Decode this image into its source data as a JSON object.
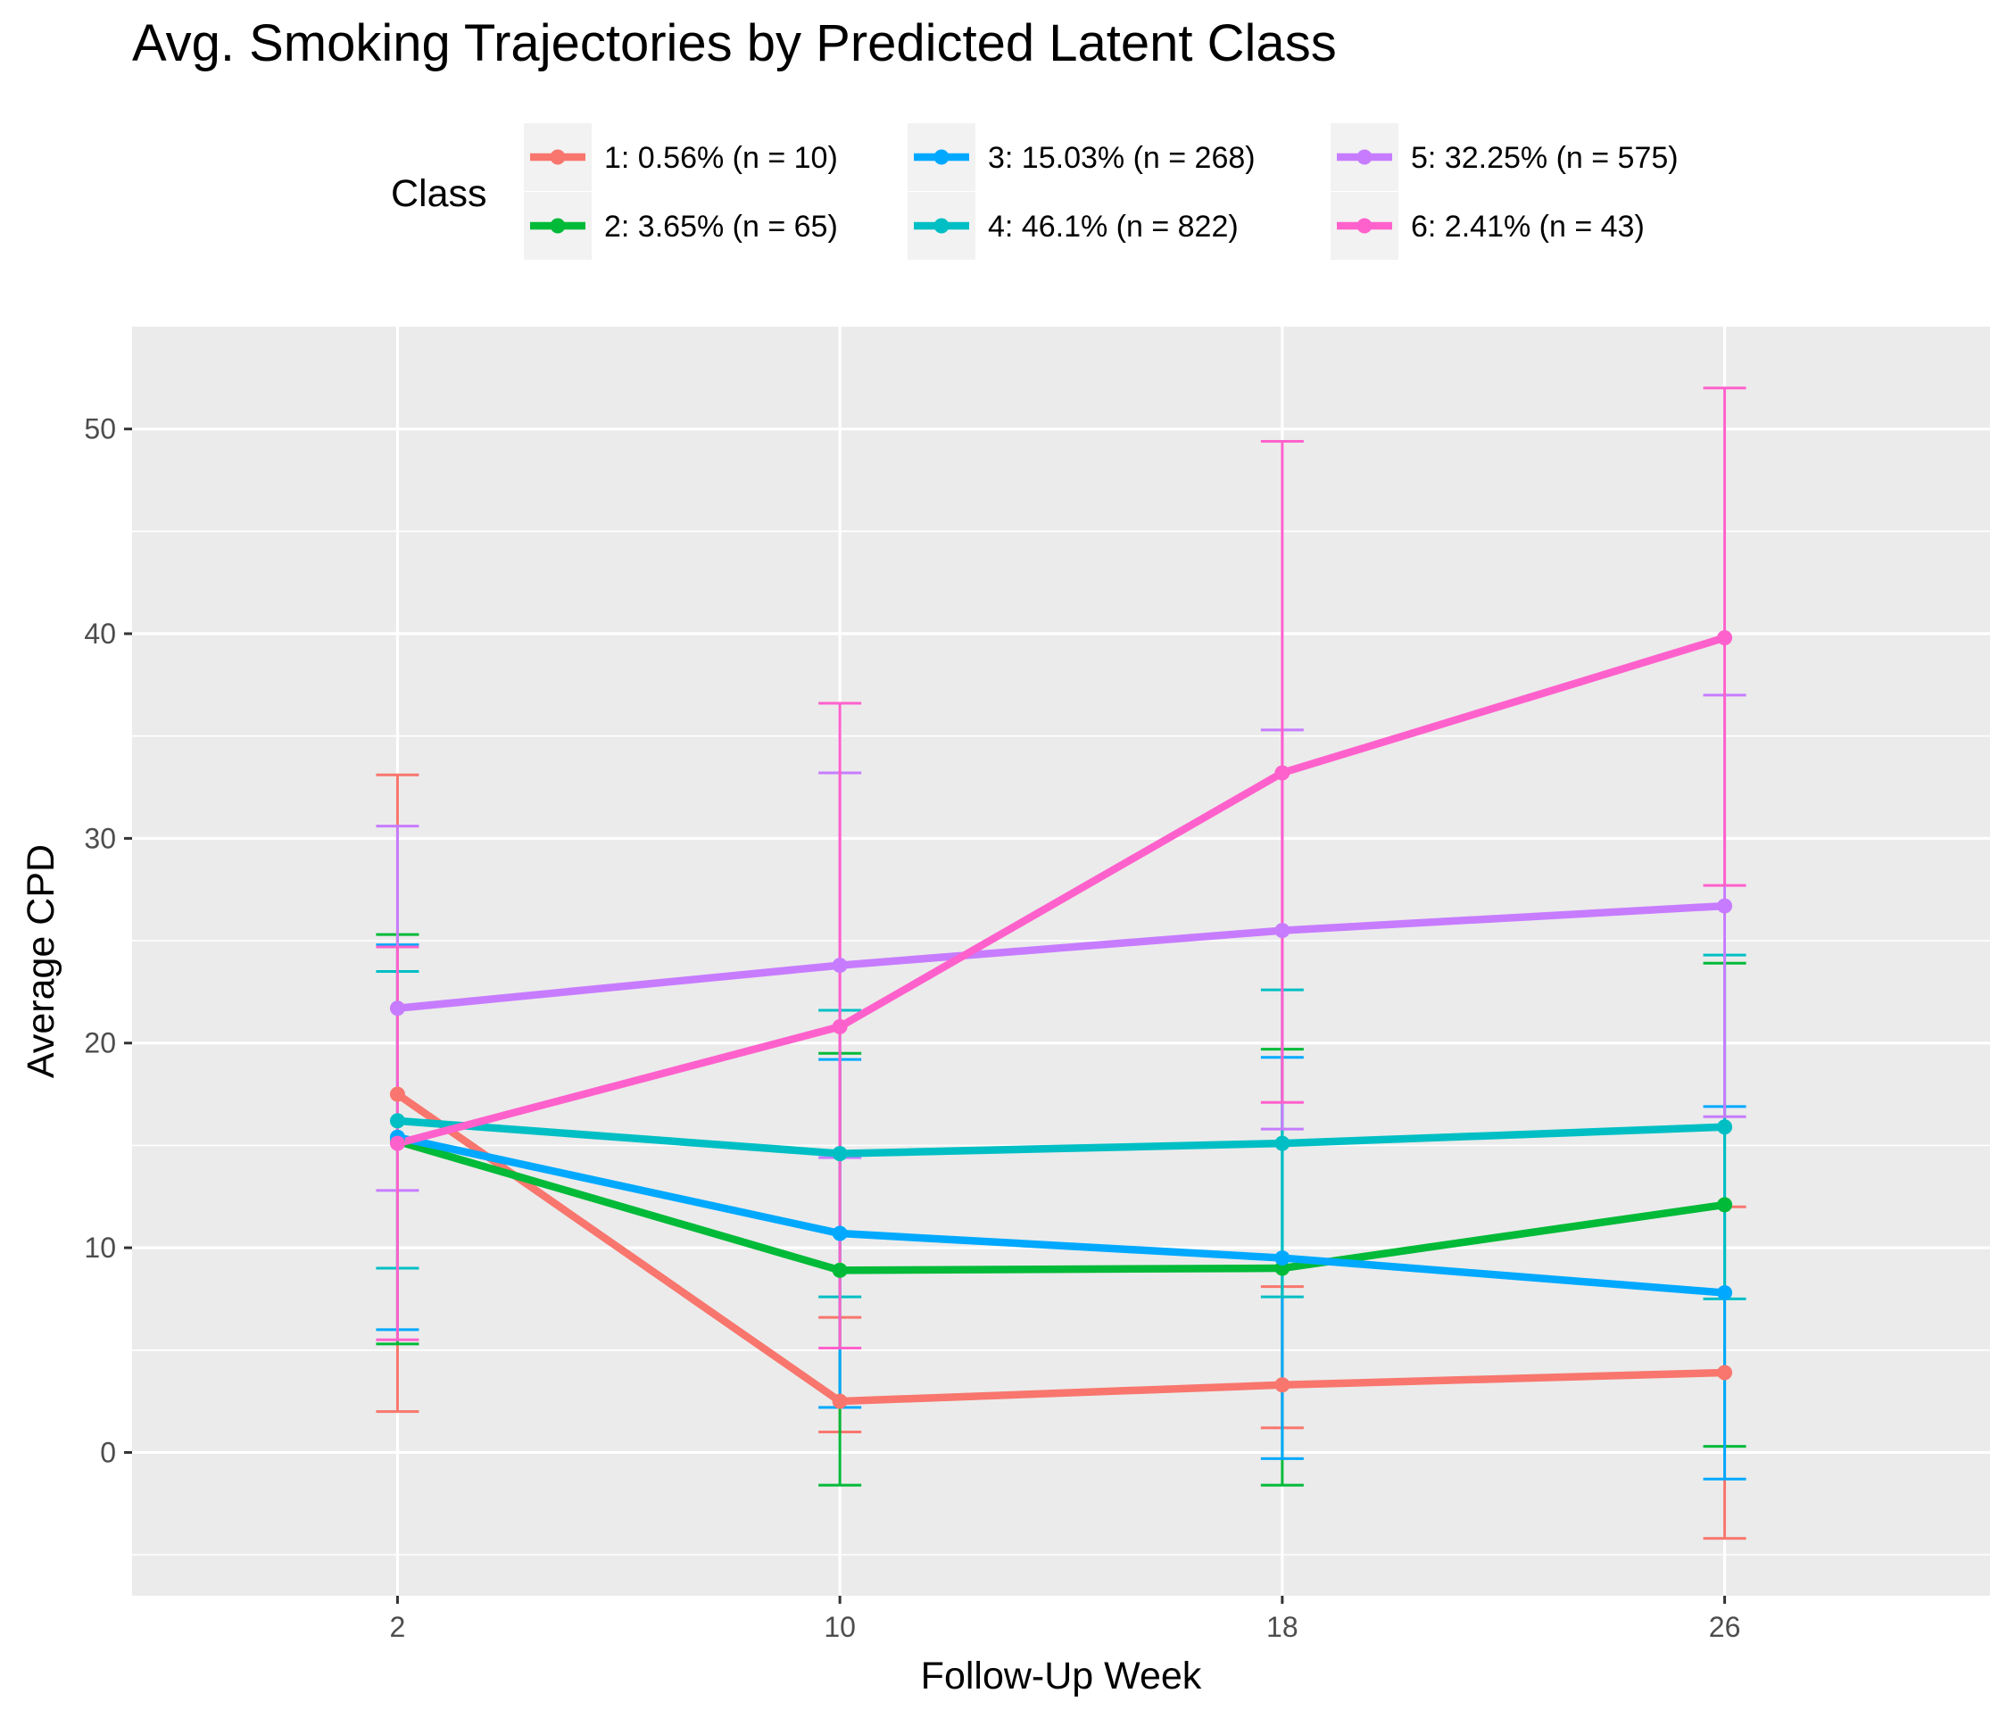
{
  "chart_data": {
    "type": "line",
    "title": "Avg. Smoking Trajectories by Predicted Latent Class",
    "xlabel": "Follow-Up Week",
    "ylabel": "Average CPD",
    "x": [
      2,
      10,
      18,
      26
    ],
    "x_tick_labels": [
      "2",
      "10",
      "18",
      "26"
    ],
    "xlim": [
      -2.8,
      30.8
    ],
    "ylim": [
      -7,
      55
    ],
    "y_ticks": [
      0,
      10,
      20,
      30,
      40,
      50
    ],
    "y_tick_labels": [
      "0",
      "10",
      "20",
      "30",
      "40",
      "50"
    ],
    "grid": true,
    "legend": {
      "title": "Class",
      "position": "top"
    },
    "series": [
      {
        "name": "1: 0.56% (n = 10)",
        "color": "#F8766D",
        "values": [
          17.5,
          2.5,
          3.3,
          3.9
        ],
        "lower": [
          2.0,
          1.0,
          1.2,
          -4.2
        ],
        "upper": [
          33.1,
          6.6,
          8.1,
          12.0
        ]
      },
      {
        "name": "2: 3.65% (n = 65)",
        "color": "#00BA38",
        "values": [
          15.2,
          8.9,
          9.0,
          12.1
        ],
        "lower": [
          5.3,
          -1.6,
          -1.6,
          0.3
        ],
        "upper": [
          25.3,
          19.5,
          19.7,
          23.9
        ]
      },
      {
        "name": "3: 15.03% (n = 268)",
        "color": "#00A9FF",
        "values": [
          15.4,
          10.7,
          9.5,
          7.8
        ],
        "lower": [
          6.0,
          2.2,
          -0.3,
          -1.3
        ],
        "upper": [
          24.8,
          19.2,
          19.3,
          16.9
        ]
      },
      {
        "name": "4: 46.1% (n = 822)",
        "color": "#00BFC4",
        "values": [
          16.2,
          14.6,
          15.1,
          15.9
        ],
        "lower": [
          9.0,
          7.6,
          7.6,
          7.5
        ],
        "upper": [
          23.5,
          21.6,
          22.6,
          24.3
        ]
      },
      {
        "name": "5: 32.25% (n = 575)",
        "color": "#C77CFF",
        "values": [
          21.7,
          23.8,
          25.5,
          26.7
        ],
        "lower": [
          12.8,
          14.4,
          15.8,
          16.4
        ],
        "upper": [
          30.6,
          33.2,
          35.3,
          37.0
        ]
      },
      {
        "name": "6: 2.41% (n = 43)",
        "color": "#FF61CC",
        "values": [
          15.1,
          20.8,
          33.2,
          39.8
        ],
        "lower": [
          5.5,
          5.1,
          17.1,
          27.7
        ],
        "upper": [
          24.7,
          36.6,
          49.4,
          52.0
        ]
      }
    ]
  }
}
